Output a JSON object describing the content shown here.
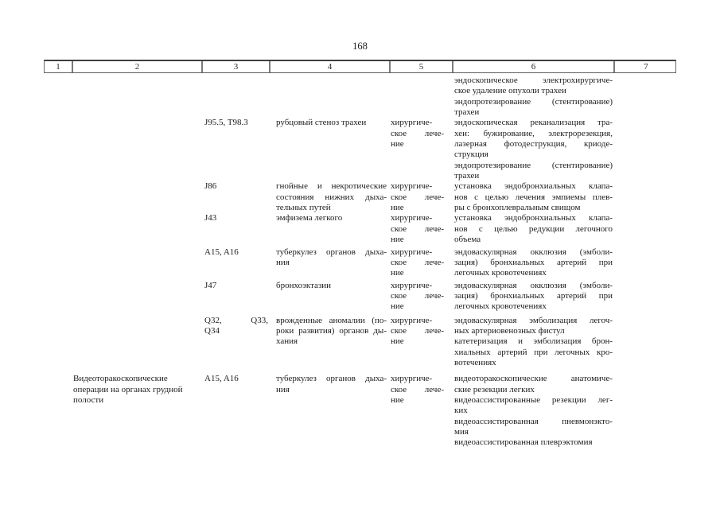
{
  "page": {
    "number": "168"
  },
  "table": {
    "header": [
      "1",
      "2",
      "3",
      "4",
      "5",
      "6",
      "7"
    ],
    "rows": [
      {
        "c6": [
          [
            "эндоскопическое электрохирургиче-",
            "ское удаление опухоли трахеи"
          ],
          [
            "эндопротезирование (стентирование)",
            "трахеи"
          ]
        ]
      },
      {
        "c3": [
          [
            "J95.5, T98.3"
          ]
        ],
        "c4": [
          [
            "рубцовый стеноз трахеи"
          ]
        ],
        "c5": [
          [
            "хирургиче-",
            "ское лече-",
            "ние"
          ]
        ],
        "c6": [
          [
            "эндоскопическая реканализация тра-",
            "хеи: бужирование, электрорезекция,",
            "лазерная фотодеструкция, криоде-",
            "струкция"
          ],
          [
            "эндопротезирование (стентирование)",
            "трахеи"
          ]
        ]
      },
      {
        "c3": [
          [
            "J86"
          ]
        ],
        "c4": [
          [
            "гнойные и некротические",
            "состояния нижних дыха-",
            "тельных путей"
          ]
        ],
        "c5": [
          [
            "хирургиче-",
            "ское лече-",
            "ние"
          ]
        ],
        "c6": [
          [
            "установка эндобронхиальных клапа-",
            "нов с целью лечения эмпиемы плев-",
            "ры с бронхоплевральным свищом"
          ]
        ]
      },
      {
        "c3": [
          [
            "J43"
          ]
        ],
        "c4": [
          [
            "эмфизема легкого"
          ]
        ],
        "c5": [
          [
            "хирургиче-",
            "ское лече-",
            "ние"
          ]
        ],
        "c6": [
          [
            "установка эндобронхиальных клапа-",
            "нов с целью редукции легочного",
            "объема"
          ]
        ]
      },
      {
        "c3": [
          [
            "A15, A16"
          ]
        ],
        "c4": [
          [
            "туберкулез органов дыха-",
            "ния"
          ]
        ],
        "c5": [
          [
            "хирургиче-",
            "ское лече-",
            "ние"
          ]
        ],
        "c6": [
          [
            "эндоваскулярная окклюзия (эмболи-",
            "зация) бронхиальных артерий при",
            "легочных кровотечениях"
          ]
        ]
      },
      {
        "c3": [
          [
            "J47"
          ]
        ],
        "c4": [
          [
            "бронхоэктазии"
          ]
        ],
        "c5": [
          [
            "хирургиче-",
            "ское лече-",
            "ние"
          ]
        ],
        "c6": [
          [
            "эндоваскулярная окклюзия (эмболи-",
            "зация) бронхиальных артерий при",
            "легочных кровотечениях"
          ]
        ]
      },
      {
        "c3": [
          [
            "Q32, Q33,",
            "Q34"
          ]
        ],
        "c4": [
          [
            "врожденные аномалии (по-",
            "роки развития) органов ды-",
            "хания"
          ]
        ],
        "c5": [
          [
            "хирургиче-",
            "ское лече-",
            "ние"
          ]
        ],
        "c6": [
          [
            "эндоваскулярная эмболизация легоч-",
            "ных артериовенозных фистул"
          ],
          [
            "катетеризация и эмболизация брон-",
            "хиальных артерий при легочных кро-",
            "вотечениях"
          ]
        ]
      },
      {
        "c2": [
          [
            "Видеоторакоскопические",
            "операции на органах грудной",
            "полости"
          ]
        ],
        "c3": [
          [
            "A15, A16"
          ]
        ],
        "c4": [
          [
            "туберкулез органов дыха-",
            "ния"
          ]
        ],
        "c5": [
          [
            "хирургиче-",
            "ское лече-",
            "ние"
          ]
        ],
        "c6": [
          [
            "видеоторакоскопические анатомиче-",
            "ские резекции легких"
          ],
          [
            "видеоассистированные резекции лег-",
            "ких"
          ],
          [
            "видеоассистированная пневмонэкто-",
            "мия"
          ],
          [
            "видеоассистированная плеврэктомия"
          ]
        ]
      }
    ]
  }
}
